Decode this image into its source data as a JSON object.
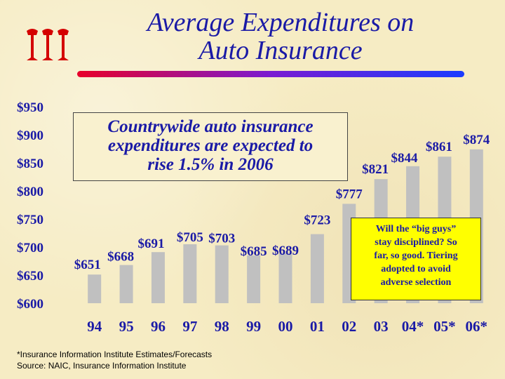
{
  "slide": {
    "title_line1": "Average Expenditures on",
    "title_line2": "Auto Insurance",
    "logo_icon": "iii-logo-icon",
    "callout": {
      "line1": "Countrywide auto insurance",
      "line2": "expenditures are expected to",
      "line3": "rise 1.5% in 2006"
    },
    "note": {
      "line1": "Will the “big guys”",
      "line2": "stay disciplined?  So",
      "line3": "far, so good.  Tiering",
      "line4": "adopted to avoid",
      "line5": "adverse selection"
    },
    "footnote_line1": "*Insurance Information Institute Estimates/Forecasts",
    "footnote_line2": "Source:  NAIC, Insurance Information Institute",
    "colors": {
      "title": "#1a1aa6",
      "bar": "#c0c0c0",
      "logo": "#d40000",
      "note_bg": "#ffff00"
    }
  },
  "chart_data": {
    "type": "bar",
    "categories": [
      "94",
      "95",
      "96",
      "97",
      "98",
      "99",
      "00",
      "01",
      "02",
      "03",
      "04*",
      "05*",
      "06*"
    ],
    "values": [
      651,
      668,
      691,
      705,
      703,
      685,
      689,
      723,
      777,
      821,
      844,
      861,
      874
    ],
    "value_labels": [
      "$651",
      "$668",
      "$691",
      "$705",
      "$703",
      "$685",
      "$689",
      "$723",
      "$777",
      "$821",
      "$844",
      "$861",
      "$874"
    ],
    "ylim": [
      600,
      950
    ],
    "yticks": [
      600,
      650,
      700,
      750,
      800,
      850,
      900,
      950
    ],
    "ytick_labels": [
      "$600",
      "$650",
      "$700",
      "$750",
      "$800",
      "$850",
      "$900",
      "$950"
    ],
    "grid": false,
    "title": "",
    "xlabel": "",
    "ylabel": ""
  }
}
